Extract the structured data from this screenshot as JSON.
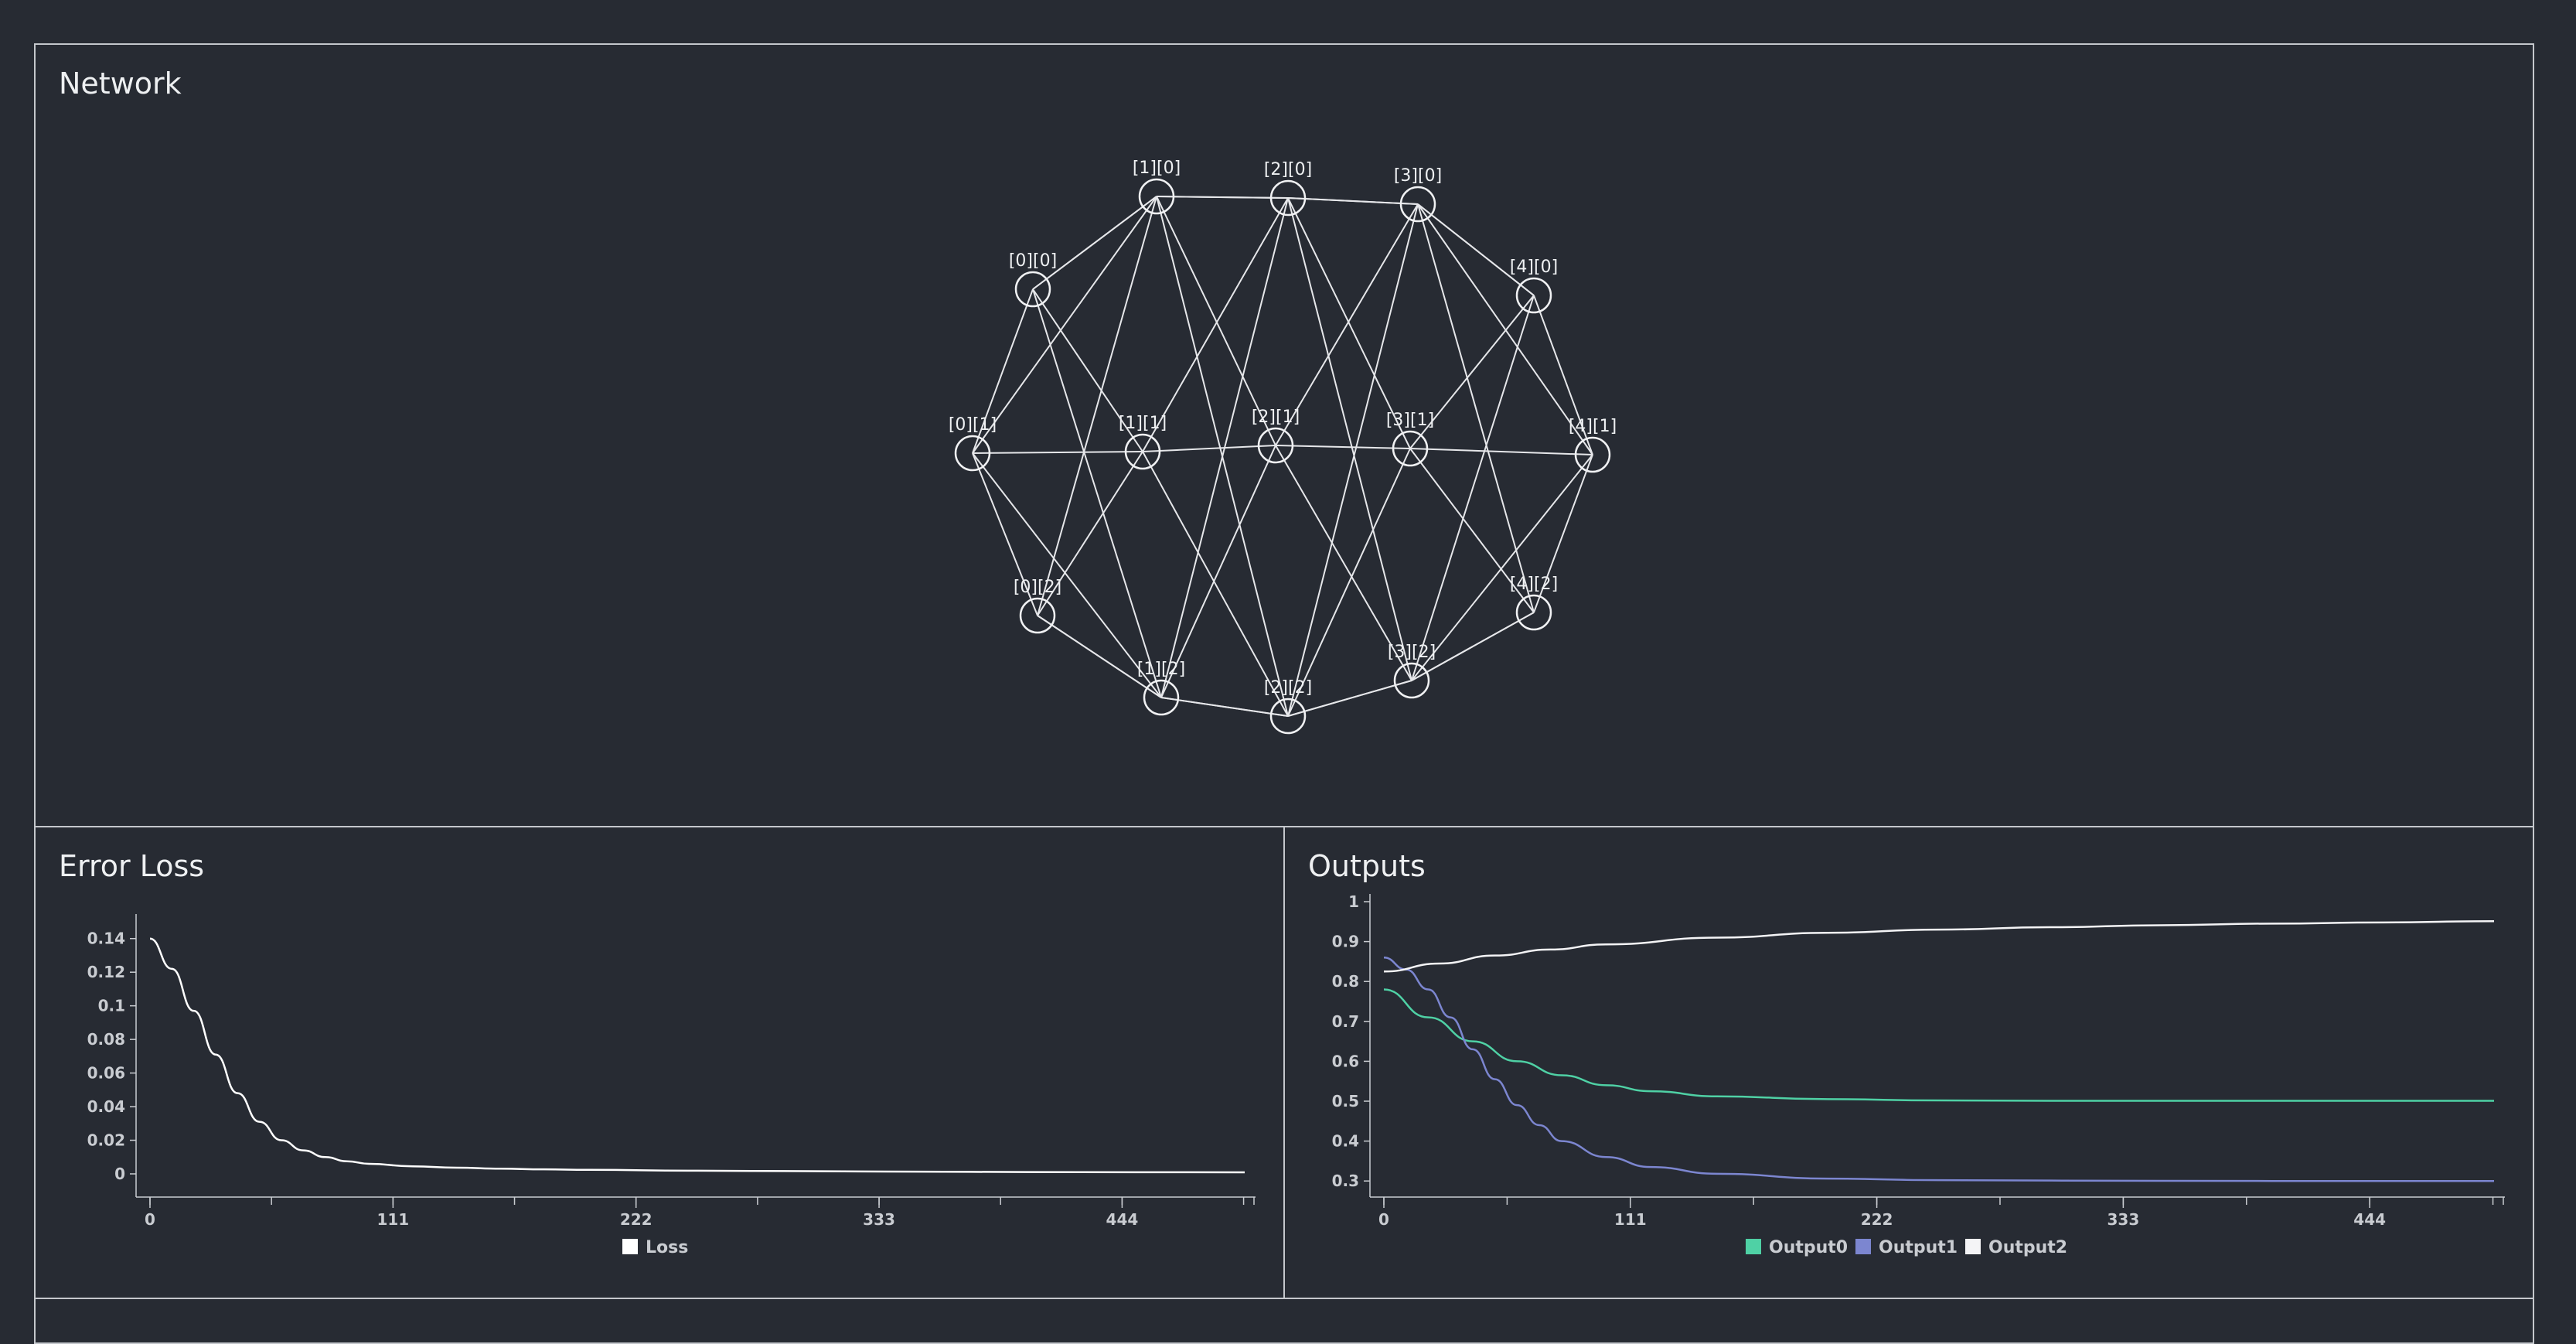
{
  "network": {
    "title": "Network",
    "layers": [
      [
        "[0][0]",
        "[0][1]",
        "[0][2]"
      ],
      [
        "[1][0]",
        "[1][1]",
        "[1][2]"
      ],
      [
        "[2][0]",
        "[2][1]",
        "[2][2]"
      ],
      [
        "[3][0]",
        "[3][1]",
        "[3][2]"
      ],
      [
        "[4][0]",
        "[4][1]",
        "[4][2]"
      ]
    ]
  },
  "loss_panel": {
    "title": "Error Loss"
  },
  "outputs_panel": {
    "title": "Outputs"
  },
  "chart_data": [
    {
      "type": "line",
      "title": "Error Loss",
      "xlabel": "",
      "ylabel": "",
      "xlim": [
        0,
        500
      ],
      "ylim": [
        0,
        0.15
      ],
      "x_ticks": [
        0,
        111,
        222,
        333,
        444
      ],
      "y_ticks": [
        0,
        0.02,
        0.04,
        0.06,
        0.08,
        0.1,
        0.12,
        0.14
      ],
      "legend_position": "bottom",
      "series": [
        {
          "name": "Loss",
          "color": "#ffffff",
          "x": [
            0,
            10,
            20,
            30,
            40,
            50,
            60,
            70,
            80,
            90,
            100,
            120,
            140,
            160,
            180,
            200,
            250,
            300,
            350,
            400,
            450,
            500
          ],
          "values": [
            0.14,
            0.122,
            0.097,
            0.071,
            0.048,
            0.031,
            0.02,
            0.014,
            0.01,
            0.0075,
            0.006,
            0.0045,
            0.0037,
            0.0031,
            0.0027,
            0.0024,
            0.0019,
            0.0016,
            0.0013,
            0.0011,
            0.001,
            0.0009
          ]
        }
      ]
    },
    {
      "type": "line",
      "title": "Outputs",
      "xlabel": "",
      "ylabel": "",
      "xlim": [
        0,
        500
      ],
      "ylim": [
        0.25,
        1
      ],
      "x_ticks": [
        0,
        111,
        222,
        333,
        444
      ],
      "y_ticks": [
        0.3,
        0.4,
        0.5,
        0.6,
        0.7,
        0.8,
        0.9,
        1
      ],
      "legend_position": "bottom",
      "series": [
        {
          "name": "Output0",
          "color": "#4fd1a5",
          "x": [
            0,
            20,
            40,
            60,
            80,
            100,
            120,
            150,
            200,
            250,
            300,
            400,
            500
          ],
          "values": [
            0.78,
            0.71,
            0.65,
            0.6,
            0.565,
            0.54,
            0.525,
            0.512,
            0.505,
            0.502,
            0.501,
            0.501,
            0.501
          ]
        },
        {
          "name": "Output1",
          "color": "#7c86d0",
          "x": [
            0,
            10,
            20,
            30,
            40,
            50,
            60,
            70,
            80,
            100,
            120,
            150,
            200,
            250,
            300,
            400,
            500
          ],
          "values": [
            0.86,
            0.83,
            0.78,
            0.71,
            0.63,
            0.555,
            0.49,
            0.44,
            0.4,
            0.36,
            0.335,
            0.318,
            0.306,
            0.302,
            0.301,
            0.3,
            0.3
          ]
        },
        {
          "name": "Output2",
          "color": "#f4f4f6",
          "x": [
            0,
            25,
            50,
            75,
            100,
            150,
            200,
            250,
            300,
            350,
            400,
            450,
            500
          ],
          "values": [
            0.825,
            0.845,
            0.865,
            0.88,
            0.893,
            0.91,
            0.922,
            0.93,
            0.936,
            0.941,
            0.945,
            0.948,
            0.951
          ]
        }
      ]
    }
  ]
}
